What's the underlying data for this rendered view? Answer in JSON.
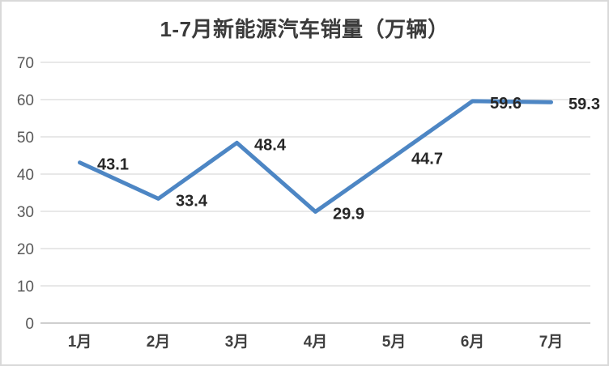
{
  "chart_data": {
    "type": "line",
    "title": "1-7月新能源汽车销量（万辆）",
    "categories": [
      "1月",
      "2月",
      "3月",
      "4月",
      "5月",
      "6月",
      "7月"
    ],
    "values": [
      43.1,
      33.4,
      48.4,
      29.9,
      44.7,
      59.6,
      59.3
    ],
    "data_labels": [
      "43.1",
      "33.4",
      "48.4",
      "29.9",
      "44.7",
      "59.6",
      "59.3"
    ],
    "y_ticks": [
      0,
      10,
      20,
      30,
      40,
      50,
      60,
      70
    ],
    "ylim": [
      0,
      70
    ],
    "xlabel": "",
    "ylabel": "",
    "grid": true,
    "legend": false,
    "markers": false,
    "data_label_position": "right",
    "colors": {
      "line": "#4d86c4",
      "grid": "#d9d9d9",
      "axis": "#bfbfbf",
      "title_text": "#3b3b3b",
      "tick_text": "#595959",
      "x_label_text": "#404040",
      "data_label_text": "#262626",
      "border": "#d9d9d9",
      "background": "#ffffff"
    }
  }
}
